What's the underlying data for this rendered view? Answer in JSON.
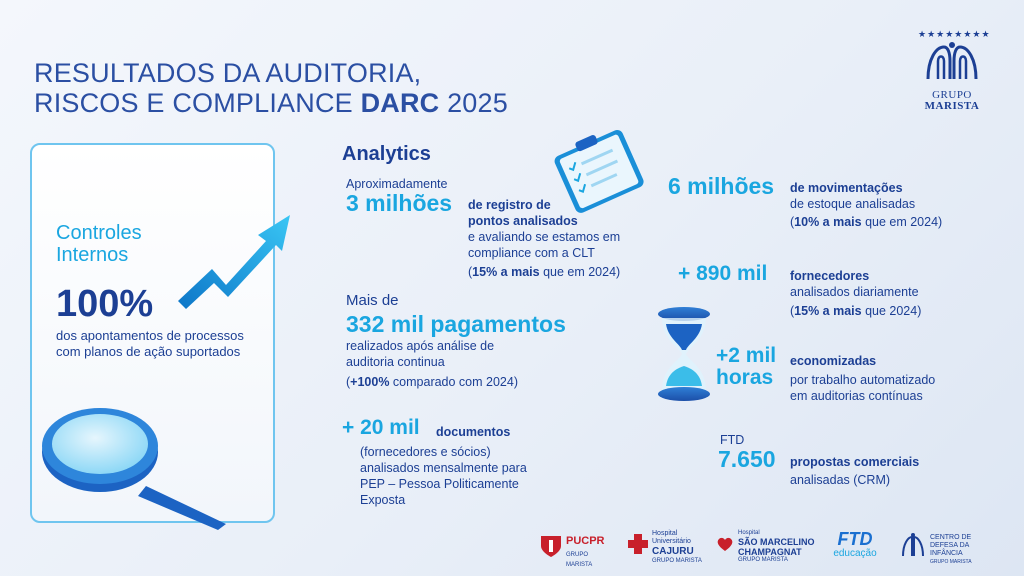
{
  "header": {
    "title_line1": "RESULTADOS DA AUDITORIA,",
    "title_line2_prefix": "RISCOS E COMPLIANCE ",
    "title_line2_bold": "DARC",
    "title_line2_year": " 2025"
  },
  "brand": {
    "stars": "★★★★★★★★",
    "name_line1": "GRUPO",
    "name_line2": "MARISTA"
  },
  "controles": {
    "title_line1": "Controles",
    "title_line2": "Internos",
    "value": "100%",
    "desc_line1": "dos apontamentos de processos",
    "desc_line2": "com planos de ação suportados"
  },
  "analytics": {
    "heading": "Analytics",
    "pontos": {
      "pre": "Aproximadamente",
      "value": "3 milhões",
      "label_line1": "de registro de",
      "label_line2": "pontos analisados",
      "desc_line1": "e avaliando se estamos em",
      "desc_line2": "compliance com a CLT",
      "note_open": "(",
      "note_bold": "15% a mais",
      "note_rest": " que em 2024)"
    },
    "pagamentos": {
      "pre": "Mais de",
      "value": "332 mil pagamentos",
      "desc_line1": "realizados após análise de",
      "desc_line2": "auditoria continua",
      "note_open": "(",
      "note_bold": "+100%",
      "note_rest": " comparado com 2024)"
    },
    "documentos": {
      "value": "+ 20 mil",
      "label": "documentos",
      "desc_line1": "(fornecedores e sócios)",
      "desc_line2": "analisados mensalmente para",
      "desc_line3": "PEP – Pessoa Politicamente",
      "desc_line4": "Exposta"
    },
    "estoque": {
      "value": "6 milhões",
      "label": "de movimentações",
      "desc": "de estoque analisadas",
      "note_open": "(",
      "note_bold": "10% a mais",
      "note_rest": " que em 2024)"
    },
    "fornecedores": {
      "value": "+ 890 mil",
      "label": "fornecedores",
      "desc": "analisados diariamente",
      "note_open": "(",
      "note_bold": "15% a mais",
      "note_rest": " que 2024)"
    },
    "horas": {
      "value_line1": "+2 mil",
      "value_line2": "horas",
      "label": "economizadas",
      "desc_line1": "por trabalho automatizado",
      "desc_line2": "em auditorias contínuas"
    },
    "ftd": {
      "pre": "FTD",
      "value": "7.650",
      "label": "propostas comerciais",
      "desc": "analisadas (CRM)"
    }
  },
  "footer_logos": {
    "pucpr": "PUCPR",
    "pucpr_sub": "GRUPO MARISTA",
    "cajuru_line1": "Hospital",
    "cajuru_line2": "Universitário",
    "cajuru_line3": "CAJURU",
    "cajuru_sub": "GRUPO MARISTA",
    "smc_line0": "Hospital",
    "smc_line1": "SÃO MARCELINO",
    "smc_line2": "CHAMPAGNAT",
    "smc_sub": "GRUPO MARISTA",
    "ftd_line1": "FTD",
    "ftd_line2": "educação",
    "cdi_line1": "CENTRO DE",
    "cdi_line2": "DEFESA DA INFÂNCIA",
    "cdi_sub": "GRUPO MARISTA"
  },
  "colors": {
    "navy": "#1c3f94",
    "cyan": "#1aa6e0",
    "border": "#6fc5ef",
    "red": "#c8202b"
  }
}
